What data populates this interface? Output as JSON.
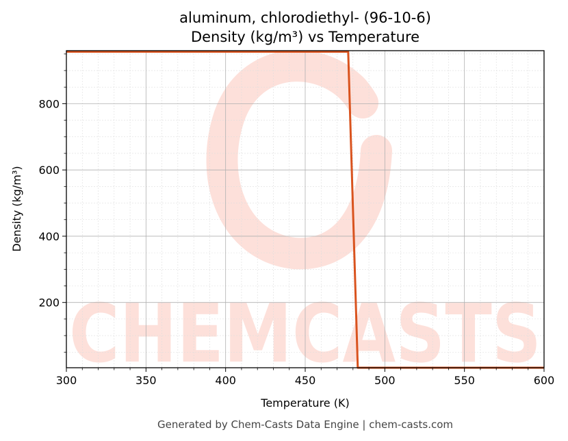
{
  "chart_data": {
    "type": "line",
    "title_line1": "aluminum, chlorodiethyl- (96-10-6)",
    "title_line2": "Density (kg/m³) vs Temperature",
    "xlabel": "Temperature (K)",
    "ylabel": "Density (kg/m³)",
    "xlim": [
      300,
      600
    ],
    "ylim": [
      3,
      960
    ],
    "x_ticks": [
      300,
      350,
      400,
      450,
      500,
      550,
      600
    ],
    "y_ticks": [
      200,
      400,
      600,
      800
    ],
    "grid": true,
    "series": [
      {
        "color": "#d9531e",
        "x": [
          300,
          477,
          483,
          600
        ],
        "y": [
          957,
          957,
          3,
          3
        ]
      }
    ]
  },
  "footer": "Generated by Chem-Casts Data Engine | chem-casts.com",
  "watermark": {
    "text": "CHEMCASTS",
    "color": "#fde0da"
  }
}
